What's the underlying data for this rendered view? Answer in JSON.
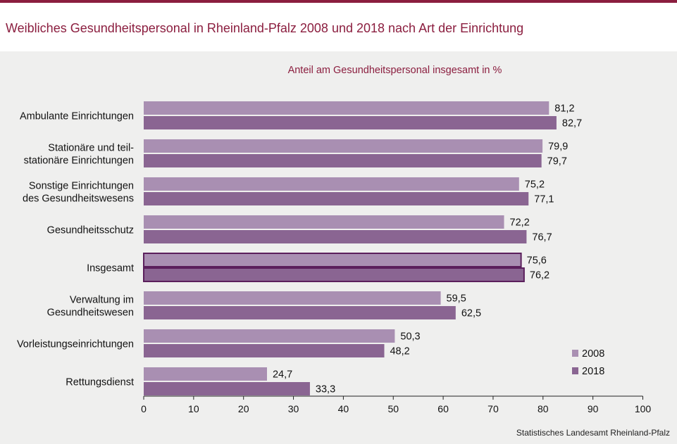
{
  "title": "Weibliches Gesundheitspersonal in Rheinland-Pfalz 2008 und 2018 nach Art der Einrichtung",
  "source": "Statistisches Landesamt  Rheinland-Pfalz",
  "colors": {
    "brand": "#8b1e3f",
    "series_2008": "#a98fb2",
    "series_2018": "#8a6592",
    "highlight_border": "#5b1f5c"
  },
  "chart_data": {
    "type": "bar",
    "orientation": "horizontal",
    "subtitle": "Anteil am Gesundheitspersonal  insgesamt in %",
    "categories": [
      [
        "Ambulante Einrichtungen"
      ],
      [
        "Stationäre und teil-",
        "stationäre Einrichtungen"
      ],
      [
        "Sonstige Einrichtungen",
        "des Gesundheitswesens"
      ],
      [
        "Gesundheitsschutz"
      ],
      [
        "Insgesamt"
      ],
      [
        "Verwaltung im",
        "Gesundheitswesen"
      ],
      [
        "Vorleistungseinrichtungen"
      ],
      [
        "Rettungsdienst"
      ]
    ],
    "highlight_category": "Insgesamt",
    "series": [
      {
        "name": "2008",
        "values": [
          81.2,
          79.9,
          75.2,
          72.2,
          75.6,
          59.5,
          50.3,
          24.7
        ],
        "labels": [
          "81,2",
          "79,9",
          "75,2",
          "72,2",
          "75,6",
          "59,5",
          "50,3",
          "24,7"
        ]
      },
      {
        "name": "2018",
        "values": [
          82.7,
          79.7,
          77.1,
          76.7,
          76.2,
          62.5,
          48.2,
          33.3
        ],
        "labels": [
          "82,7",
          "79,7",
          "77,1",
          "76,7",
          "76,2",
          "62,5",
          "48,2",
          "33,3"
        ]
      }
    ],
    "xlim": [
      0,
      100
    ],
    "xticks": [
      "0",
      "10",
      "20",
      "30",
      "40",
      "50",
      "60",
      "70",
      "80",
      "90",
      "100"
    ],
    "legend_position": "bottom-right",
    "grid": false
  }
}
